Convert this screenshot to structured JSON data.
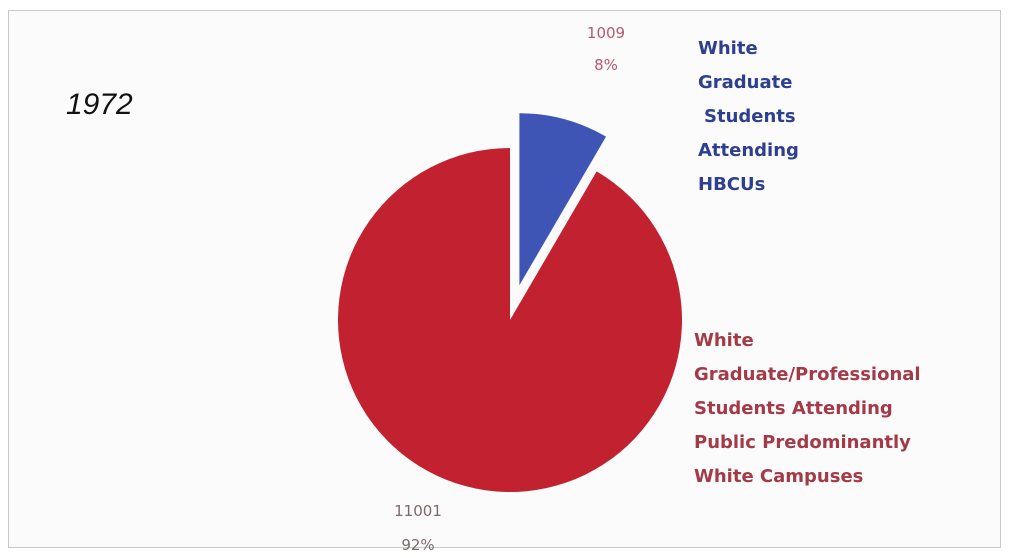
{
  "chart_data": {
    "type": "pie",
    "title": "1972",
    "categories": [
      "White Graduate Students Attending HBCUs",
      "White Graduate/Professional Students Attending Public Predominantly White Campuses"
    ],
    "values": [
      1009,
      11001
    ],
    "percent_labels": [
      "8%",
      "92%"
    ],
    "value_labels": [
      "1009",
      "11001"
    ],
    "label_lines": [
      [
        "White",
        "Graduate",
        "Students",
        "Attending",
        "HBCUs"
      ],
      [
        "White",
        "Graduate/Professional",
        "Students Attending",
        "Public Predominantly",
        "White Campuses"
      ]
    ],
    "exploded": [
      true,
      false
    ],
    "colors": [
      "#3f55b5",
      "#c2212f"
    ],
    "label_colors": [
      "#2e3f8f",
      "#a33a48"
    ],
    "value_label_colors": [
      "#b45a6a",
      "#7a6a6a"
    ],
    "legend": "none"
  }
}
